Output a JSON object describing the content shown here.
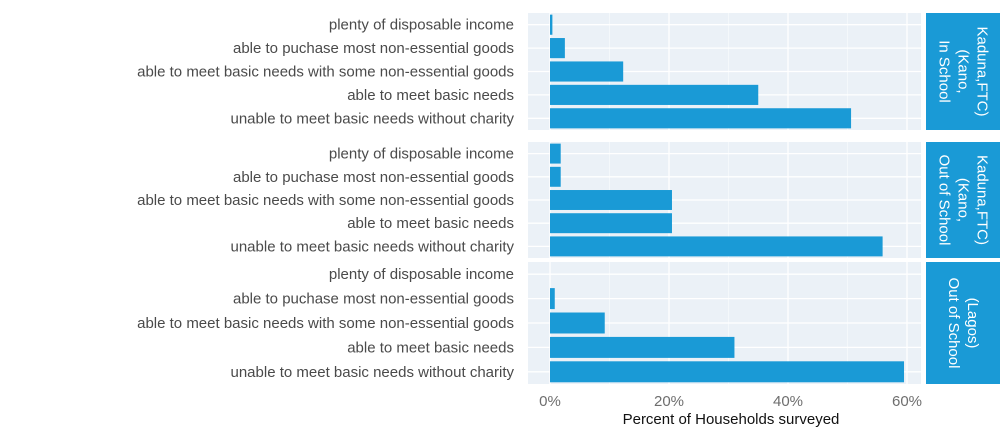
{
  "chart_data": {
    "type": "bar",
    "orientation": "horizontal",
    "xlabel": "Percent of Households surveyed",
    "xlim": [
      0,
      65
    ],
    "x_ticks": [
      0,
      20,
      40,
      60
    ],
    "x_tick_labels": [
      "0%",
      "20%",
      "40%",
      "60%"
    ],
    "grid": true,
    "colors": {
      "bar": "#1a9ad6",
      "panel": "#ebf1f7",
      "strip": "#1a9ad6",
      "grid_major": "#ffffff",
      "grid_minor": "#f4f8fb"
    },
    "categories": [
      "plenty of disposable income",
      "able to puchase most non-essential goods",
      "able to meet basic needs with some non-essential goods",
      "able to meet basic needs",
      "unable to meet basic needs without charity"
    ],
    "panels": [
      {
        "strip_lines": [
          "In School",
          "(Kano,",
          "Kaduna,FTC)"
        ],
        "values": [
          0.4,
          2.5,
          12.3,
          35.0,
          50.6
        ]
      },
      {
        "strip_lines": [
          "Out of School",
          "(Kano,",
          "Kaduna,FTC)"
        ],
        "values": [
          1.8,
          1.8,
          20.5,
          20.5,
          55.9
        ]
      },
      {
        "strip_lines": [
          "Out of School",
          "(Lagos)"
        ],
        "values": [
          0.0,
          0.8,
          9.2,
          31.0,
          59.5
        ]
      }
    ]
  }
}
